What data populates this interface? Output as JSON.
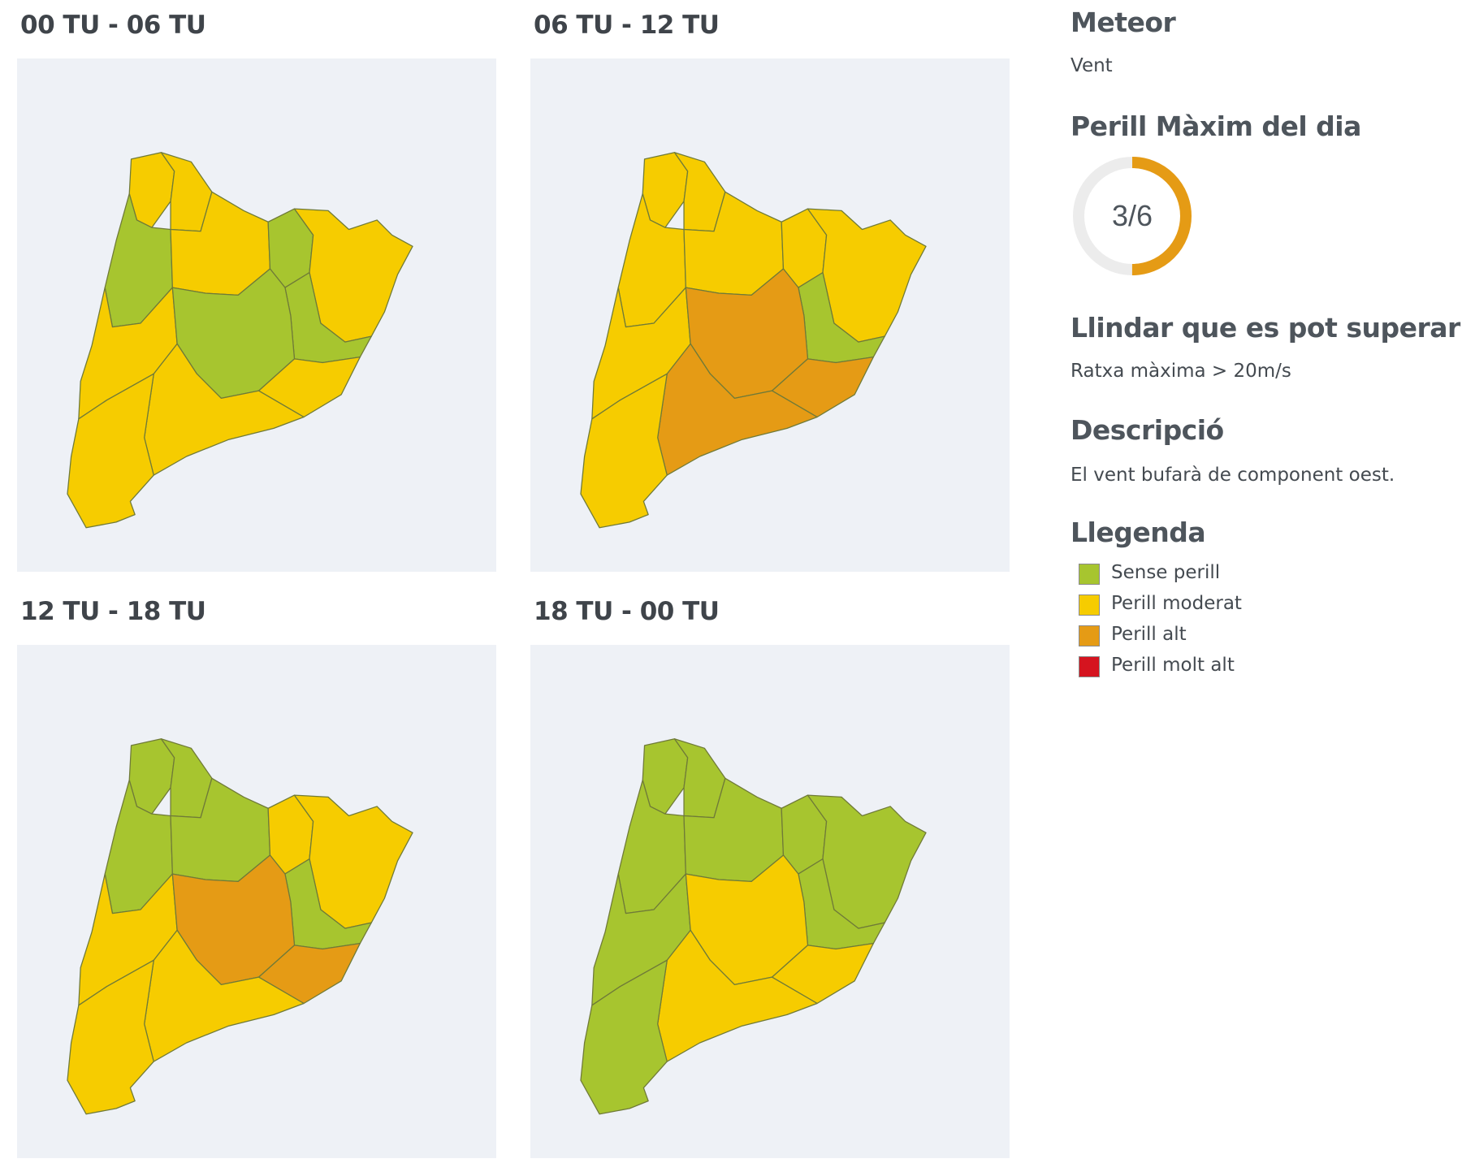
{
  "colors": {
    "none": "#a7c52f",
    "moderate": "#f6cc00",
    "high": "#e59b15",
    "very_high": "#d5141f",
    "background": "#eef1f6",
    "border": "#6f7a38"
  },
  "maps": [
    {
      "title": "00 TU - 06 TU",
      "zones": [
        "moderate",
        "moderate",
        "none",
        "moderate",
        "none",
        "moderate",
        "none",
        "moderate",
        "none",
        "moderate",
        "moderate",
        "moderate"
      ]
    },
    {
      "title": "06 TU - 12 TU",
      "zones": [
        "moderate",
        "moderate",
        "moderate",
        "moderate",
        "moderate",
        "moderate",
        "none",
        "moderate",
        "high",
        "high",
        "high",
        "moderate"
      ]
    },
    {
      "title": "12 TU - 18 TU",
      "zones": [
        "none",
        "none",
        "none",
        "none",
        "moderate",
        "moderate",
        "none",
        "moderate",
        "high",
        "high",
        "moderate",
        "moderate"
      ]
    },
    {
      "title": "18 TU - 00 TU",
      "zones": [
        "none",
        "none",
        "none",
        "none",
        "none",
        "none",
        "none",
        "none",
        "moderate",
        "moderate",
        "moderate",
        "none"
      ]
    }
  ],
  "sidebar": {
    "meteor_heading": "Meteor",
    "meteor_value": "Vent",
    "max_heading": "Perill Màxim del dia",
    "max_level": 3,
    "max_scale": 6,
    "max_label": "3/6",
    "threshold_heading": "Llindar que es pot superar",
    "threshold_value": "Ratxa màxima > 20m/s",
    "description_heading": "Descripció",
    "description_value": "El vent bufarà de component oest.",
    "legend_heading": "Llegenda",
    "legend": [
      {
        "label": "Sense perill",
        "color": "#a7c52f"
      },
      {
        "label": "Perill moderat",
        "color": "#f6cc00"
      },
      {
        "label": "Perill alt",
        "color": "#e59b15"
      },
      {
        "label": "Perill molt alt",
        "color": "#d5141f"
      }
    ]
  }
}
